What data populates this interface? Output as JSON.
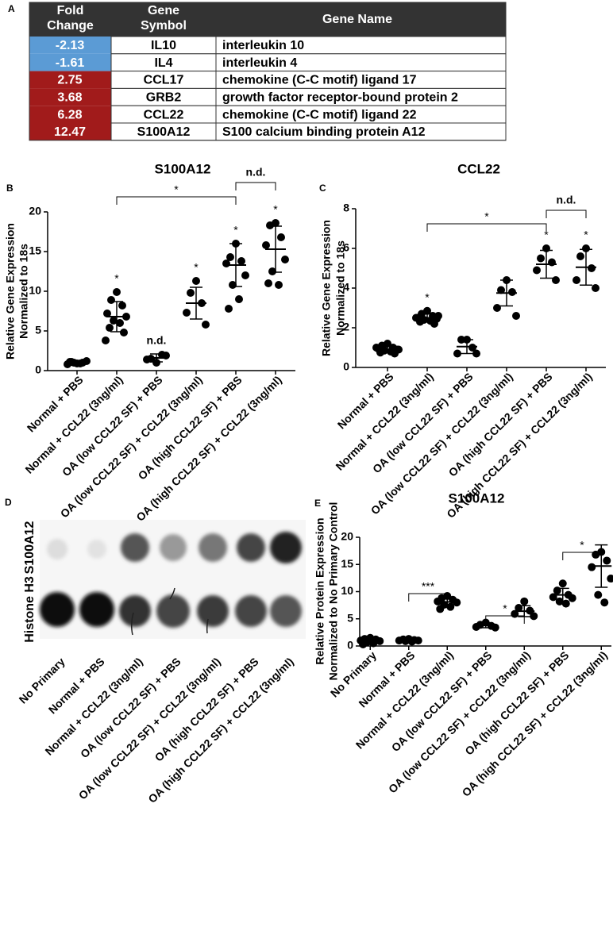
{
  "table": {
    "panel": "A",
    "header": [
      [
        "Fold",
        "Change"
      ],
      [
        "Gene",
        "Symbol"
      ],
      [
        "Gene Name"
      ]
    ],
    "rows": [
      [
        "-2.13",
        "IL10",
        "interleukin 10"
      ],
      [
        "-1.61",
        "IL4",
        "interleukin 4"
      ],
      [
        "2.75",
        "CCL17",
        "chemokine (C-C motif) ligand 17"
      ],
      [
        "3.68",
        "GRB2",
        "growth factor receptor-bound protein 2"
      ],
      [
        "6.28",
        "CCL22",
        "chemokine (C-C motif) ligand 22"
      ],
      [
        "12.47",
        "S100A12",
        "S100 calcium binding protein A12"
      ]
    ],
    "colors": {
      "down": "#5b9bd5",
      "up": "#a11b1b",
      "header": "#333333"
    }
  },
  "blot": {
    "panel": "D",
    "row_labels": [
      "S100A12",
      "Histone H3"
    ],
    "lanes": [
      "No Primary",
      "Normal + PBS",
      "Normal + CCL22 (3ng/ml)",
      "OA (low CCL22 SF) + PBS",
      "OA (low CCL22 SF) + CCL22 (3ng/ml)",
      "OA (high CCL22 SF) + PBS",
      "OA (high CCL22 SF) + CCL22 (3ng/ml)"
    ]
  },
  "chart_data": [
    {
      "panel": "B",
      "type": "dot",
      "title": "S100A12",
      "ylabel": [
        "Relative Gene Expression",
        "Normalized to 18s"
      ],
      "categories": [
        "Normal + PBS",
        "Normal + CCL22 (3ng/ml)",
        "OA (low CCL22 SF) + PBS",
        "OA (low CCL22 SF) + CCL22 (3ng/ml)",
        "OA (high CCL22 SF) + PBS",
        "OA (high CCL22 SF) + CCL22 (3ng/ml)"
      ],
      "points": [
        [
          0.9,
          1.1,
          1.0,
          0.8,
          1.2,
          1.0,
          0.9,
          1.1
        ],
        [
          9.9,
          8.9,
          8.2,
          7.2,
          6.8,
          6.3,
          6.0,
          5.4,
          4.8,
          3.8
        ],
        [
          1.0,
          1.5,
          2.0,
          1.4,
          1.9
        ],
        [
          11.3,
          9.8,
          8.5,
          7.3,
          5.8
        ],
        [
          16.0,
          14.3,
          13.8,
          13.5,
          12.0,
          10.8,
          9.0,
          7.8
        ],
        [
          18.6,
          18.3,
          16.8,
          15.8,
          14.0,
          12.5,
          10.8,
          11.0
        ]
      ],
      "means": [
        1.0,
        6.8,
        1.6,
        8.5,
        13.3,
        15.3
      ],
      "sd": [
        0.2,
        1.9,
        0.5,
        2.0,
        2.7,
        2.9
      ],
      "point_labels": [
        null,
        "*",
        "n.d.",
        "*",
        "*",
        "*"
      ],
      "brackets": [
        "*",
        "n.d."
      ],
      "ylim": [
        0,
        20
      ],
      "yticks": [
        0,
        5,
        10,
        15,
        20
      ],
      "color": "#000000"
    },
    {
      "panel": "C",
      "type": "dot",
      "title": "CCL22",
      "ylabel": [
        "Relative Gene Expression",
        "Normalized to 18s"
      ],
      "categories": [
        "Normal + PBS",
        "Normal + CCL22 (3ng/ml)",
        "OA (low CCL22 SF) + PBS",
        "OA (low CCL22 SF) + CCL22 (3ng/ml)",
        "OA (high CCL22 SF) + PBS",
        "OA (high CCL22 SF) + CCL22 (3ng/ml)"
      ],
      "points": [
        [
          1.2,
          1.1,
          1.0,
          0.95,
          0.9,
          0.85,
          0.8,
          0.75,
          0.7,
          1.0,
          0.9
        ],
        [
          2.85,
          2.7,
          2.6,
          2.5,
          2.45,
          2.4,
          2.35,
          2.3,
          2.2,
          2.5,
          2.6
        ],
        [
          1.4,
          1.4,
          1.0,
          0.7,
          0.7
        ],
        [
          4.4,
          3.9,
          3.8,
          3.0,
          2.6
        ],
        [
          6.0,
          5.5,
          5.3,
          4.9,
          4.4
        ],
        [
          6.0,
          5.6,
          5.0,
          4.4,
          4.0
        ]
      ],
      "means": [
        0.9,
        2.5,
        1.05,
        3.75,
        5.2,
        5.05
      ],
      "sd": [
        0.15,
        0.2,
        0.35,
        0.65,
        0.7,
        0.9
      ],
      "point_labels": [
        null,
        "*",
        null,
        null,
        "*",
        "*"
      ],
      "brackets": [
        "*",
        "n.d."
      ],
      "ylim": [
        0,
        8
      ],
      "yticks": [
        0,
        2,
        4,
        6,
        8
      ],
      "color": "#000000"
    },
    {
      "panel": "E",
      "type": "dot",
      "title": "S100A12",
      "ylabel": [
        "Relative Protein Expression",
        "Normalized to No Primary Control"
      ],
      "categories": [
        "No Primary",
        "Normal + PBS",
        "Normal + CCL22 (3ng/ml)",
        "OA (low CCL22 SF) + PBS",
        "OA (low CCL22 SF) + CCL22 (3ng/ml)",
        "OA (high CCL22 SF) + PBS",
        "OA (high CCL22 SF) + CCL22 (3ng/ml)"
      ],
      "points": [
        [
          1.5,
          1.3,
          1.2,
          1.0,
          0.9,
          0.7,
          0.5,
          0.3
        ],
        [
          1.3,
          1.2,
          1.1,
          1.0,
          1.0,
          0.9,
          0.8
        ],
        [
          9.2,
          8.8,
          8.5,
          8.2,
          8.0,
          7.6,
          7.2,
          6.8
        ],
        [
          4.3,
          3.9,
          3.7,
          3.5,
          3.4
        ],
        [
          8.2,
          7.0,
          6.5,
          5.9,
          5.5
        ],
        [
          11.5,
          10.2,
          9.4,
          9.0,
          8.8,
          8.2,
          7.8
        ],
        [
          17.3,
          16.8,
          15.7,
          14.5,
          12.4,
          9.4,
          8.0
        ]
      ],
      "means": [
        1.0,
        1.0,
        8.1,
        3.8,
        6.4,
        9.4,
        14.7
      ],
      "sd": [
        0.5,
        0.2,
        0.8,
        0.45,
        1.0,
        1.2,
        3.9
      ],
      "point_labels": [
        null,
        null,
        null,
        null,
        null,
        null,
        null
      ],
      "brackets": [
        "***",
        "*",
        "*"
      ],
      "ylim": [
        0,
        20
      ],
      "yticks": [
        0,
        5,
        10,
        15,
        20
      ],
      "color": "#000000"
    }
  ]
}
